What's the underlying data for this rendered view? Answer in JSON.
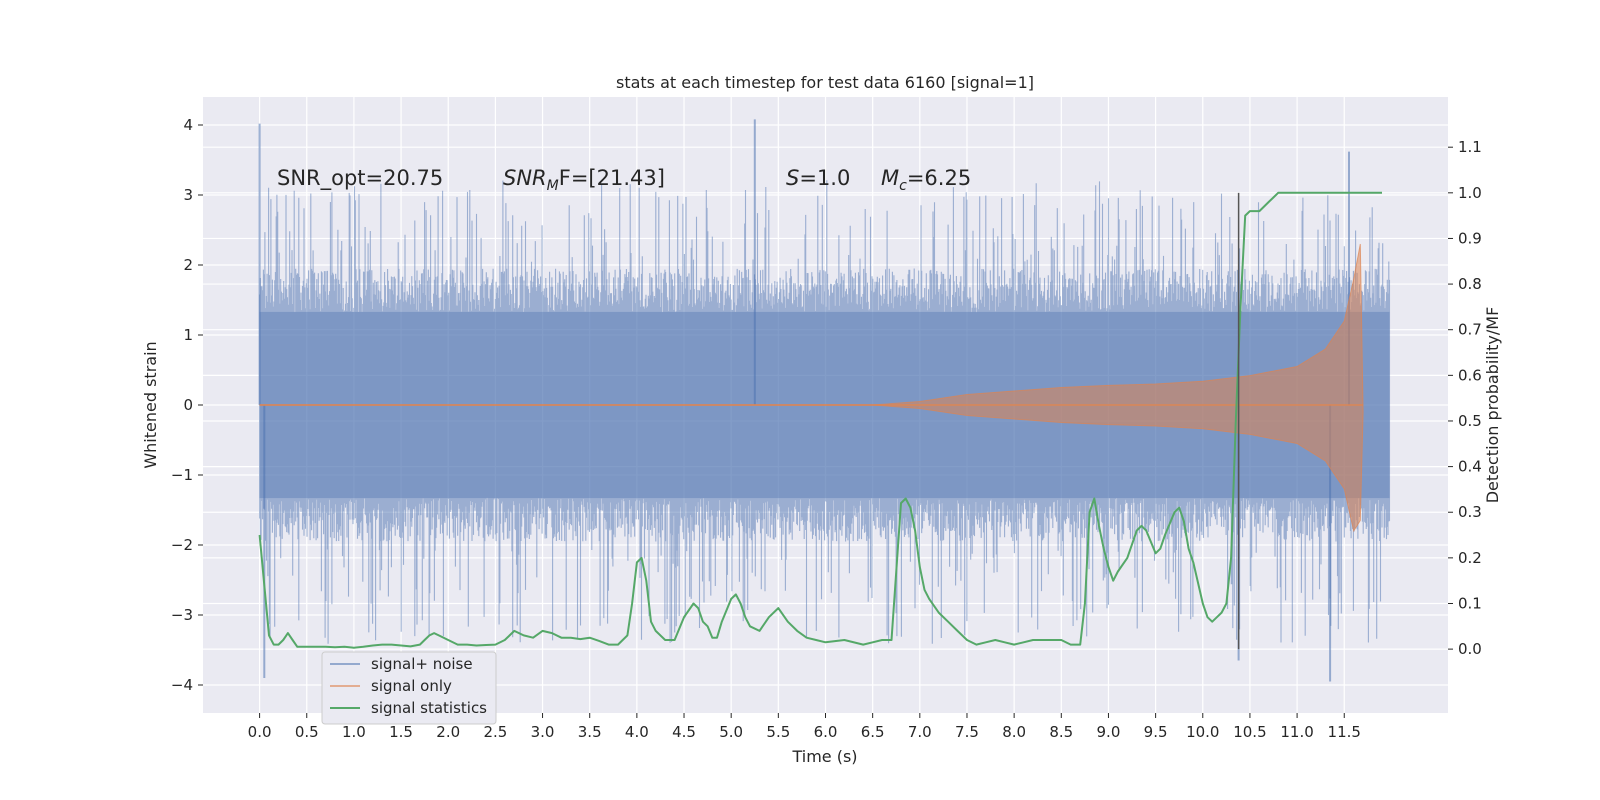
{
  "chart_data": {
    "type": "line",
    "title": "stats at each timestep for test data 6160 [signal=1]",
    "xlabel": "Time (s)",
    "ylabel": "Whitened strain",
    "y2label": "Detection probability/MF",
    "xlim": [
      -0.6,
      12.6
    ],
    "ylim": [
      -4.4,
      4.4
    ],
    "y2lim": [
      -0.14,
      1.21
    ],
    "grid": true,
    "legend_position": "bottom-left",
    "x_ticks": [
      0.0,
      0.5,
      1.0,
      1.5,
      2.0,
      2.5,
      3.0,
      3.5,
      4.0,
      4.5,
      5.0,
      5.5,
      6.0,
      6.5,
      7.0,
      7.5,
      8.0,
      8.5,
      9.0,
      9.5,
      10.0,
      10.5,
      11.0,
      11.5
    ],
    "x_tick_labels": [
      "0.0",
      "0.5",
      "1.0",
      "1.5",
      "2.0",
      "2.5",
      "3.0",
      "3.5",
      "4.0",
      "4.5",
      "5.0",
      "5.5",
      "6.0",
      "6.5",
      "7.0",
      "7.5",
      "8.0",
      "8.5",
      "9.0",
      "9.5",
      "10.0",
      "10.5",
      "11.0",
      "11.5"
    ],
    "y_ticks": [
      4,
      3,
      2,
      1,
      0,
      -1,
      -2,
      -3,
      -4
    ],
    "y_tick_labels": [
      "4",
      "3",
      "2",
      "1",
      "0",
      "−1",
      "−2",
      "−3",
      "−4"
    ],
    "y2_ticks": [
      1.1,
      1.0,
      0.9,
      0.8,
      0.7,
      0.6,
      0.5,
      0.4,
      0.3,
      0.2,
      0.1,
      0.0
    ],
    "y2_tick_labels": [
      "1.1",
      "1.0",
      "0.9",
      "0.8",
      "0.7",
      "0.6",
      "0.5",
      "0.4",
      "0.3",
      "0.2",
      "0.1",
      "0.0"
    ],
    "annotations": {
      "snr_opt": "SNR_opt=20.75",
      "snr_mf_base": "SNR",
      "snr_mf_sub": "M",
      "snr_mf_rest": "F=[21.43]",
      "s_symbol": "S",
      "s_value": "=1.0",
      "mc_symbol": "M",
      "mc_sub": "c",
      "mc_value": "=6.25"
    },
    "detection_time": 10.38,
    "series": [
      {
        "name": "signal+ noise",
        "color": "#4c72b0",
        "time_range": [
          0.0,
          11.98
        ],
        "envelope_typical": 1.95,
        "envelope_peak": [
          [
            0.0,
            4.02
          ],
          [
            0.05,
            -3.9
          ],
          [
            5.25,
            4.08
          ],
          [
            11.55,
            3.62
          ],
          [
            11.35,
            -3.95
          ],
          [
            10.38,
            -3.65
          ]
        ]
      },
      {
        "name": "signal only",
        "color": "#dd8452",
        "amplitude": [
          [
            0.0,
            0.0
          ],
          [
            6.5,
            0.0
          ],
          [
            7.0,
            0.05
          ],
          [
            7.5,
            0.15
          ],
          [
            8.0,
            0.2
          ],
          [
            8.5,
            0.25
          ],
          [
            9.0,
            0.28
          ],
          [
            9.5,
            0.3
          ],
          [
            10.0,
            0.34
          ],
          [
            10.5,
            0.42
          ],
          [
            11.0,
            0.55
          ],
          [
            11.3,
            0.8
          ],
          [
            11.5,
            1.2
          ],
          [
            11.6,
            1.8
          ],
          [
            11.67,
            2.3
          ],
          [
            11.7,
            -0.1
          ]
        ]
      },
      {
        "name": "signal statistics",
        "color": "#55a868",
        "x": [
          0.0,
          0.05,
          0.1,
          0.15,
          0.2,
          0.25,
          0.3,
          0.35,
          0.4,
          0.5,
          0.6,
          0.7,
          0.8,
          0.9,
          1.0,
          1.1,
          1.2,
          1.3,
          1.4,
          1.5,
          1.6,
          1.7,
          1.75,
          1.8,
          1.85,
          1.9,
          2.0,
          2.1,
          2.2,
          2.3,
          2.4,
          2.5,
          2.6,
          2.7,
          2.8,
          2.9,
          3.0,
          3.1,
          3.2,
          3.3,
          3.4,
          3.5,
          3.6,
          3.7,
          3.8,
          3.9,
          3.95,
          4.0,
          4.05,
          4.1,
          4.15,
          4.2,
          4.3,
          4.4,
          4.5,
          4.6,
          4.65,
          4.7,
          4.75,
          4.8,
          4.85,
          4.9,
          5.0,
          5.05,
          5.1,
          5.15,
          5.2,
          5.3,
          5.4,
          5.5,
          5.6,
          5.7,
          5.8,
          5.9,
          6.0,
          6.2,
          6.4,
          6.5,
          6.6,
          6.7,
          6.8,
          6.85,
          6.9,
          6.95,
          7.0,
          7.05,
          7.1,
          7.2,
          7.3,
          7.4,
          7.5,
          7.6,
          7.7,
          7.8,
          7.9,
          8.0,
          8.1,
          8.2,
          8.3,
          8.4,
          8.5,
          8.6,
          8.7,
          8.75,
          8.8,
          8.85,
          8.9,
          8.95,
          9.0,
          9.05,
          9.1,
          9.2,
          9.3,
          9.35,
          9.4,
          9.5,
          9.55,
          9.6,
          9.7,
          9.75,
          9.8,
          9.85,
          9.9,
          10.0,
          10.05,
          10.1,
          10.15,
          10.2,
          10.25,
          10.3,
          10.35,
          10.4,
          10.45,
          10.5,
          10.6,
          10.7,
          10.75,
          10.8,
          10.9,
          11.0,
          11.2,
          11.5,
          11.9
        ],
        "y": [
          0.25,
          0.14,
          0.03,
          0.01,
          0.01,
          0.02,
          0.035,
          0.02,
          0.005,
          0.005,
          0.005,
          0.005,
          0.004,
          0.005,
          0.003,
          0.005,
          0.008,
          0.01,
          0.01,
          0.008,
          0.006,
          0.01,
          0.02,
          0.03,
          0.035,
          0.03,
          0.02,
          0.01,
          0.01,
          0.008,
          0.009,
          0.01,
          0.02,
          0.04,
          0.03,
          0.025,
          0.04,
          0.035,
          0.025,
          0.025,
          0.022,
          0.025,
          0.018,
          0.01,
          0.01,
          0.03,
          0.1,
          0.19,
          0.2,
          0.15,
          0.06,
          0.04,
          0.02,
          0.02,
          0.07,
          0.1,
          0.09,
          0.06,
          0.05,
          0.025,
          0.025,
          0.06,
          0.11,
          0.12,
          0.1,
          0.07,
          0.05,
          0.04,
          0.07,
          0.09,
          0.06,
          0.04,
          0.025,
          0.02,
          0.015,
          0.02,
          0.01,
          0.015,
          0.02,
          0.02,
          0.32,
          0.33,
          0.31,
          0.26,
          0.18,
          0.13,
          0.11,
          0.08,
          0.06,
          0.04,
          0.02,
          0.01,
          0.015,
          0.02,
          0.015,
          0.01,
          0.015,
          0.02,
          0.02,
          0.02,
          0.02,
          0.01,
          0.01,
          0.1,
          0.3,
          0.33,
          0.27,
          0.22,
          0.18,
          0.15,
          0.17,
          0.2,
          0.26,
          0.27,
          0.26,
          0.21,
          0.22,
          0.25,
          0.3,
          0.31,
          0.28,
          0.22,
          0.19,
          0.1,
          0.07,
          0.06,
          0.07,
          0.08,
          0.1,
          0.2,
          0.5,
          0.75,
          0.95,
          0.96,
          0.96,
          0.98,
          0.99,
          1.0,
          1.0,
          1.0,
          1.0,
          1.0,
          1.0
        ]
      }
    ]
  }
}
